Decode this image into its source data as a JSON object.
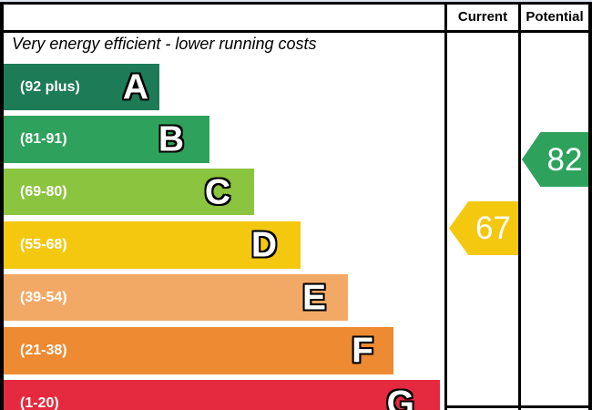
{
  "header": {
    "current": "Current",
    "potential": "Potential"
  },
  "caption": "Very energy efficient - lower running costs",
  "bands": [
    {
      "range": "(92 plus)",
      "letter": "A",
      "color": "#1d7b58"
    },
    {
      "range": "(81-91)",
      "letter": "B",
      "color": "#2ea25c"
    },
    {
      "range": "(69-80)",
      "letter": "C",
      "color": "#8bc43e"
    },
    {
      "range": "(55-68)",
      "letter": "D",
      "color": "#f4c80f"
    },
    {
      "range": "(39-54)",
      "letter": "E",
      "color": "#f2a966"
    },
    {
      "range": "(21-38)",
      "letter": "F",
      "color": "#ee8a31"
    },
    {
      "range": "(1-20)",
      "letter": "G",
      "color": "#e5293e"
    }
  ],
  "markers": {
    "current": {
      "value": "67",
      "color": "#f4c80f"
    },
    "potential": {
      "value": "82",
      "color": "#2ea25c"
    }
  },
  "chart_data": {
    "type": "bar",
    "title": "Very energy efficient - lower running costs",
    "categories": [
      "A",
      "B",
      "C",
      "D",
      "E",
      "F",
      "G"
    ],
    "band_ranges": [
      "92 plus",
      "81-91",
      "69-80",
      "55-68",
      "39-54",
      "21-38",
      "1-20"
    ],
    "band_colors": [
      "#1d7b58",
      "#2ea25c",
      "#8bc43e",
      "#f4c80f",
      "#f2a966",
      "#ee8a31",
      "#e5293e"
    ],
    "bar_lengths_relative": [
      1,
      2,
      3,
      4,
      5,
      6,
      7
    ],
    "columns": [
      "Current",
      "Potential"
    ],
    "current_rating": 67,
    "current_band": "D",
    "potential_rating": 82,
    "potential_band": "B",
    "legend_position": "none",
    "grid": false
  }
}
